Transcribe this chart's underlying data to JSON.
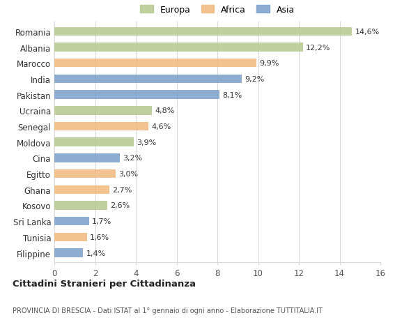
{
  "countries": [
    "Romania",
    "Albania",
    "Marocco",
    "India",
    "Pakistan",
    "Ucraina",
    "Senegal",
    "Moldova",
    "Cina",
    "Egitto",
    "Ghana",
    "Kosovo",
    "Sri Lanka",
    "Tunisia",
    "Filippine"
  ],
  "values": [
    14.6,
    12.2,
    9.9,
    9.2,
    8.1,
    4.8,
    4.6,
    3.9,
    3.2,
    3.0,
    2.7,
    2.6,
    1.7,
    1.6,
    1.4
  ],
  "labels": [
    "14,6%",
    "12,2%",
    "9,9%",
    "9,2%",
    "8,1%",
    "4,8%",
    "4,6%",
    "3,9%",
    "3,2%",
    "3,0%",
    "2,7%",
    "2,6%",
    "1,7%",
    "1,6%",
    "1,4%"
  ],
  "continents": [
    "Europa",
    "Europa",
    "Africa",
    "Asia",
    "Asia",
    "Europa",
    "Africa",
    "Europa",
    "Asia",
    "Africa",
    "Africa",
    "Europa",
    "Asia",
    "Africa",
    "Asia"
  ],
  "colors": {
    "Europa": "#b5c98e",
    "Africa": "#f0b97e",
    "Asia": "#7b9ec9"
  },
  "xlim": [
    0,
    16
  ],
  "xticks": [
    0,
    2,
    4,
    6,
    8,
    10,
    12,
    14,
    16
  ],
  "title": "Cittadini Stranieri per Cittadinanza",
  "subtitle": "PROVINCIA DI BRESCIA - Dati ISTAT al 1° gennaio di ogni anno - Elaborazione TUTTITALIA.IT",
  "bg_color": "#ffffff",
  "grid_color": "#d8d8d8"
}
